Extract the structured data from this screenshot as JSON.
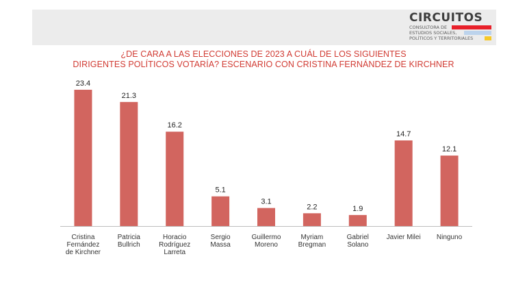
{
  "logo": {
    "name": "CIRCUITOS",
    "lines": [
      "CONSULTORA DE",
      "ESTUDIOS SOCIALES,",
      "POLÍTICOS Y TERRITORIALES"
    ],
    "colors": [
      "#e8202a",
      "#bcd3ec",
      "#f6c928"
    ]
  },
  "title": {
    "line1": "¿DE CARA A LAS ELECCIONES DE 2023 A CUÁL DE LOS SIGUIENTES",
    "line2": "DIRIGENTES POLÍTICOS VOTARÍA? ESCENARIO CON CRISTINA FERNÁNDEZ DE KIRCHNER"
  },
  "colors": {
    "bar": "#d2655f",
    "title": "#d13a32",
    "header_band": "#ececec"
  },
  "chart_data": {
    "type": "bar",
    "title": "¿DE CARA A LAS ELECCIONES DE 2023 A CUÁL DE LOS SIGUIENTES DIRIGENTES POLÍTICOS VOTARÍA? ESCENARIO CON CRISTINA FERNÁNDEZ DE KIRCHNER",
    "categories": [
      "Cristina Fernández de Kirchner",
      "Patricia Bullrich",
      "Horacio Rodríguez Larreta",
      "Sergio Massa",
      "Guillermo Moreno",
      "Myriam Bregman",
      "Gabriel Solano",
      "Javier Milei",
      "Ninguno"
    ],
    "category_lines": [
      [
        "Cristina",
        "Fernández",
        "de Kirchner"
      ],
      [
        "Patricia",
        "Bullrich"
      ],
      [
        "Horacio",
        "Rodríguez",
        "Larreta"
      ],
      [
        "Sergio",
        "Massa"
      ],
      [
        "Guillermo",
        "Moreno"
      ],
      [
        "Myriam",
        "Bregman"
      ],
      [
        "Gabriel",
        "Solano"
      ],
      [
        "Javier Milei"
      ],
      [
        "Ninguno"
      ]
    ],
    "values": [
      23.4,
      21.3,
      16.2,
      5.1,
      3.1,
      2.2,
      1.9,
      14.7,
      12.1
    ],
    "value_labels": [
      "23.4",
      "21.3",
      "16.2",
      "5.1",
      "3.1",
      "2.2",
      "1.9",
      "14.7",
      "12.1"
    ],
    "ylim": [
      0,
      23.4
    ],
    "grid": false,
    "legend": "none",
    "xlabel": "",
    "ylabel": ""
  }
}
